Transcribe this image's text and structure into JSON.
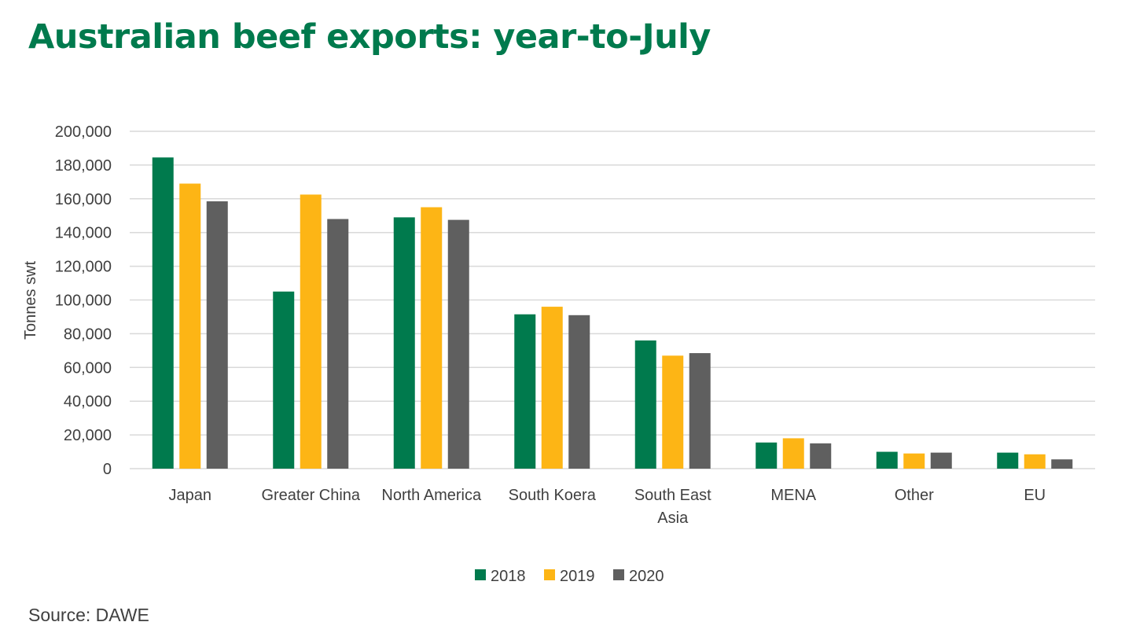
{
  "title": "Australian beef exports: year-to-July",
  "source": "Source: DAWE",
  "colors": {
    "title": "#007A4D",
    "grid": "#D9D9D9",
    "text": "#404040"
  },
  "chart_data": {
    "type": "bar",
    "title": "Australian beef exports: year-to-July",
    "xlabel": "",
    "ylabel": "Tonnes swt",
    "ylim": [
      0,
      200000
    ],
    "yticks": [
      "0",
      "20,000",
      "40,000",
      "60,000",
      "80,000",
      "100,000",
      "120,000",
      "140,000",
      "160,000",
      "180,000",
      "200,000"
    ],
    "grid": true,
    "legend_position": "bottom",
    "categories": [
      "Japan",
      "Greater China",
      "North America",
      "South Koera",
      "South East Asia",
      "MENA",
      "Other",
      "EU"
    ],
    "category_lines": [
      [
        "Japan"
      ],
      [
        "Greater China"
      ],
      [
        "North America"
      ],
      [
        "South Koera"
      ],
      [
        "South East",
        "Asia"
      ],
      [
        "MENA"
      ],
      [
        "Other"
      ],
      [
        "EU"
      ]
    ],
    "series": [
      {
        "name": "2018",
        "color": "#007A4D",
        "values": [
          184500,
          105000,
          149000,
          91500,
          76000,
          15500,
          10000,
          9500
        ]
      },
      {
        "name": "2019",
        "color": "#FDB515",
        "values": [
          169000,
          162500,
          155000,
          96000,
          67000,
          18000,
          9000,
          8500
        ]
      },
      {
        "name": "2020",
        "color": "#5F5F5F",
        "values": [
          158500,
          148000,
          147500,
          91000,
          68500,
          15000,
          9500,
          5500
        ]
      }
    ]
  }
}
